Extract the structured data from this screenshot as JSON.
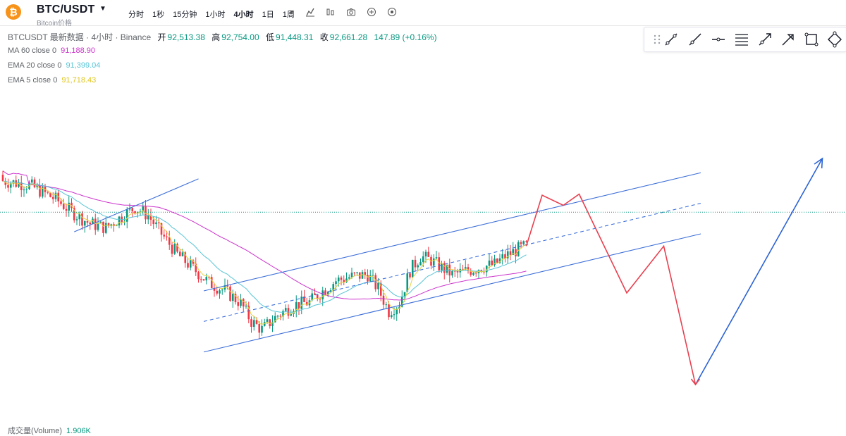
{
  "header": {
    "symbol": "BTC/USDT",
    "subtitle": "Bitcoin价格",
    "intervals": [
      {
        "label": "分时",
        "active": false
      },
      {
        "label": "1秒",
        "active": false
      },
      {
        "label": "15分钟",
        "active": false
      },
      {
        "label": "1小时",
        "active": false
      },
      {
        "label": "4小时",
        "active": true
      },
      {
        "label": "1日",
        "active": false
      },
      {
        "label": "1周",
        "active": false
      }
    ],
    "toolbar_icons": [
      "chevron-down-icon",
      "candlestick-icon",
      "bar-chart-icon",
      "camera-icon",
      "plus-circle-icon",
      "settings-circle-icon"
    ]
  },
  "legend": {
    "source": "BTCUSDT 最新数据 · 4小时 · Binance",
    "open_label": "开",
    "open": "92,513.38",
    "high_label": "高",
    "high": "92,754.00",
    "low_label": "低",
    "low": "91,448.31",
    "close_label": "收",
    "close": "92,661.28",
    "change": "147.89 (+0.16%)"
  },
  "indicators": [
    {
      "label": "MA 60 close 0",
      "value": "91,188.90",
      "color": "#cc33cc"
    },
    {
      "label": "EMA 20 close 0",
      "value": "91,399.04",
      "color": "#55c4d6"
    },
    {
      "label": "EMA 5 close 0",
      "value": "91,718.43",
      "color": "#e8d340"
    }
  ],
  "volume": {
    "label": "成交量(Volume)",
    "value": "1.906K"
  },
  "drawing_tools": [
    "drag-handle-icon",
    "trend-line-icon",
    "ray-line-icon",
    "horizontal-line-icon",
    "parallel-channel-icon",
    "arrow-line-icon",
    "arrow-icon",
    "rectangle-icon",
    "rotated-rectangle-icon"
  ],
  "colors": {
    "up": "#089981",
    "down": "#f23645",
    "channel": "#3d6fd9",
    "forecast_red": "#e8404f",
    "forecast_blue": "#2c63d4"
  },
  "chart_data": {
    "type": "candlestick",
    "symbol": "BTCUSDT",
    "interval": "4小时",
    "last_close": 92661.28,
    "price_line": 92661.28,
    "series_trend": [
      [
        0,
        94200
      ],
      [
        10,
        94000
      ],
      [
        20,
        93300
      ],
      [
        27,
        92600
      ],
      [
        33,
        92100
      ],
      [
        39,
        91900
      ],
      [
        45,
        92450
      ],
      [
        50,
        92900
      ],
      [
        55,
        92500
      ],
      [
        60,
        91600
      ],
      [
        66,
        90600
      ],
      [
        72,
        89900
      ],
      [
        78,
        89200
      ],
      [
        84,
        88800
      ],
      [
        90,
        88200
      ],
      [
        94,
        87300
      ],
      [
        98,
        86900
      ],
      [
        104,
        87600
      ],
      [
        110,
        88100
      ],
      [
        116,
        88250
      ],
      [
        120,
        88700
      ],
      [
        126,
        89300
      ],
      [
        132,
        89500
      ],
      [
        138,
        89600
      ],
      [
        142,
        88900
      ],
      [
        146,
        87800
      ],
      [
        150,
        88200
      ],
      [
        154,
        89800
      ],
      [
        158,
        90500
      ],
      [
        162,
        90300
      ],
      [
        166,
        89950
      ],
      [
        170,
        89600
      ],
      [
        176,
        89800
      ],
      [
        182,
        90000
      ],
      [
        186,
        90100
      ],
      [
        190,
        90500
      ],
      [
        195,
        90850
      ],
      [
        198,
        91000
      ]
    ],
    "forecast_red_path": [
      [
        198,
        91000
      ],
      [
        204,
        93500
      ],
      [
        212,
        93000
      ],
      [
        218,
        93550
      ],
      [
        236,
        88700
      ],
      [
        250,
        91000
      ],
      [
        262,
        84200
      ]
    ],
    "forecast_blue_path": [
      [
        262,
        84200
      ],
      [
        310,
        95300
      ]
    ],
    "channel_lines": [
      {
        "from": [
          76,
          88800
        ],
        "to": [
          264,
          94600
        ]
      },
      {
        "from": [
          76,
          85800
        ],
        "to": [
          264,
          91600
        ]
      },
      {
        "from": [
          76,
          87300
        ],
        "to": [
          264,
          93100
        ],
        "dashed": true
      }
    ],
    "support_line": {
      "from": [
        27,
        91700
      ],
      "to": [
        74,
        94300
      ]
    }
  }
}
